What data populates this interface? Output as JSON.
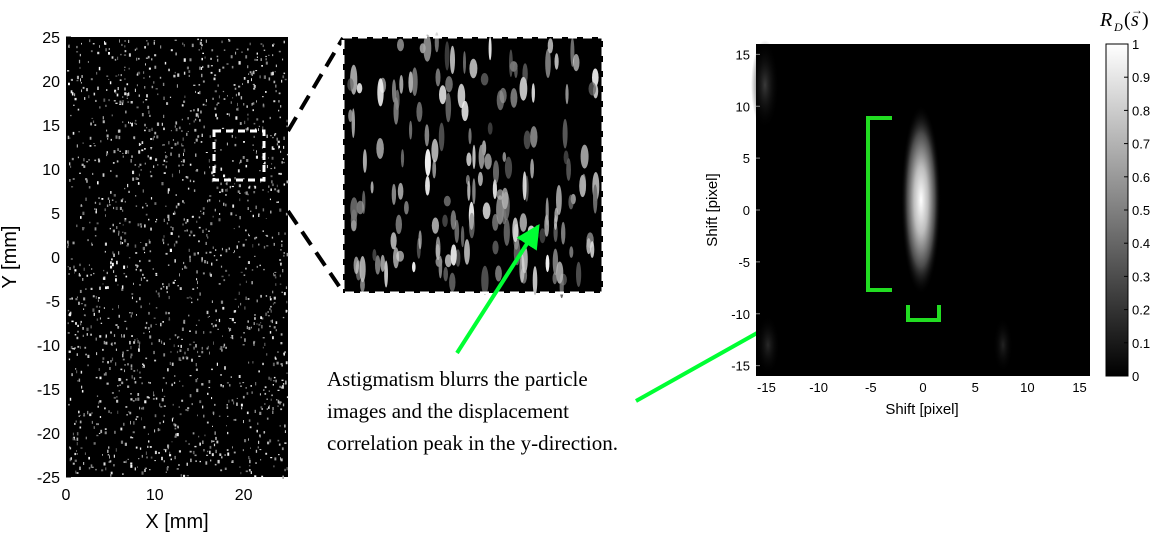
{
  "left_panel": {
    "x_label": "X [mm]",
    "y_label": "Y [mm]",
    "x_ticks": [
      "0",
      "10",
      "20"
    ],
    "y_ticks": [
      "25",
      "20",
      "15",
      "10",
      "5",
      "0",
      "-5",
      "-10",
      "-15",
      "-20",
      "-25"
    ]
  },
  "annotation": {
    "lines": [
      "Astigmatism blurrs the particle",
      "images and the displacement",
      "correlation peak in the y-direction."
    ],
    "arrow_color": "#00ff33"
  },
  "correlation_map": {
    "x_label": "Shift [pixel]",
    "y_label": "Shift [pixel]",
    "x_ticks": [
      "-15",
      "-10",
      "-5",
      "0",
      "5",
      "10",
      "15"
    ],
    "y_ticks": [
      "15",
      "10",
      "5",
      "0",
      "-5",
      "-10",
      "-15"
    ],
    "colorbar_title": "R_D(s)",
    "colorbar_ticks": [
      "1",
      "0.9",
      "0.8",
      "0.7",
      "0.6",
      "0.5",
      "0.4",
      "0.3",
      "0.2",
      "0.1",
      "0"
    ],
    "bracket_color": "#22dd22"
  }
}
